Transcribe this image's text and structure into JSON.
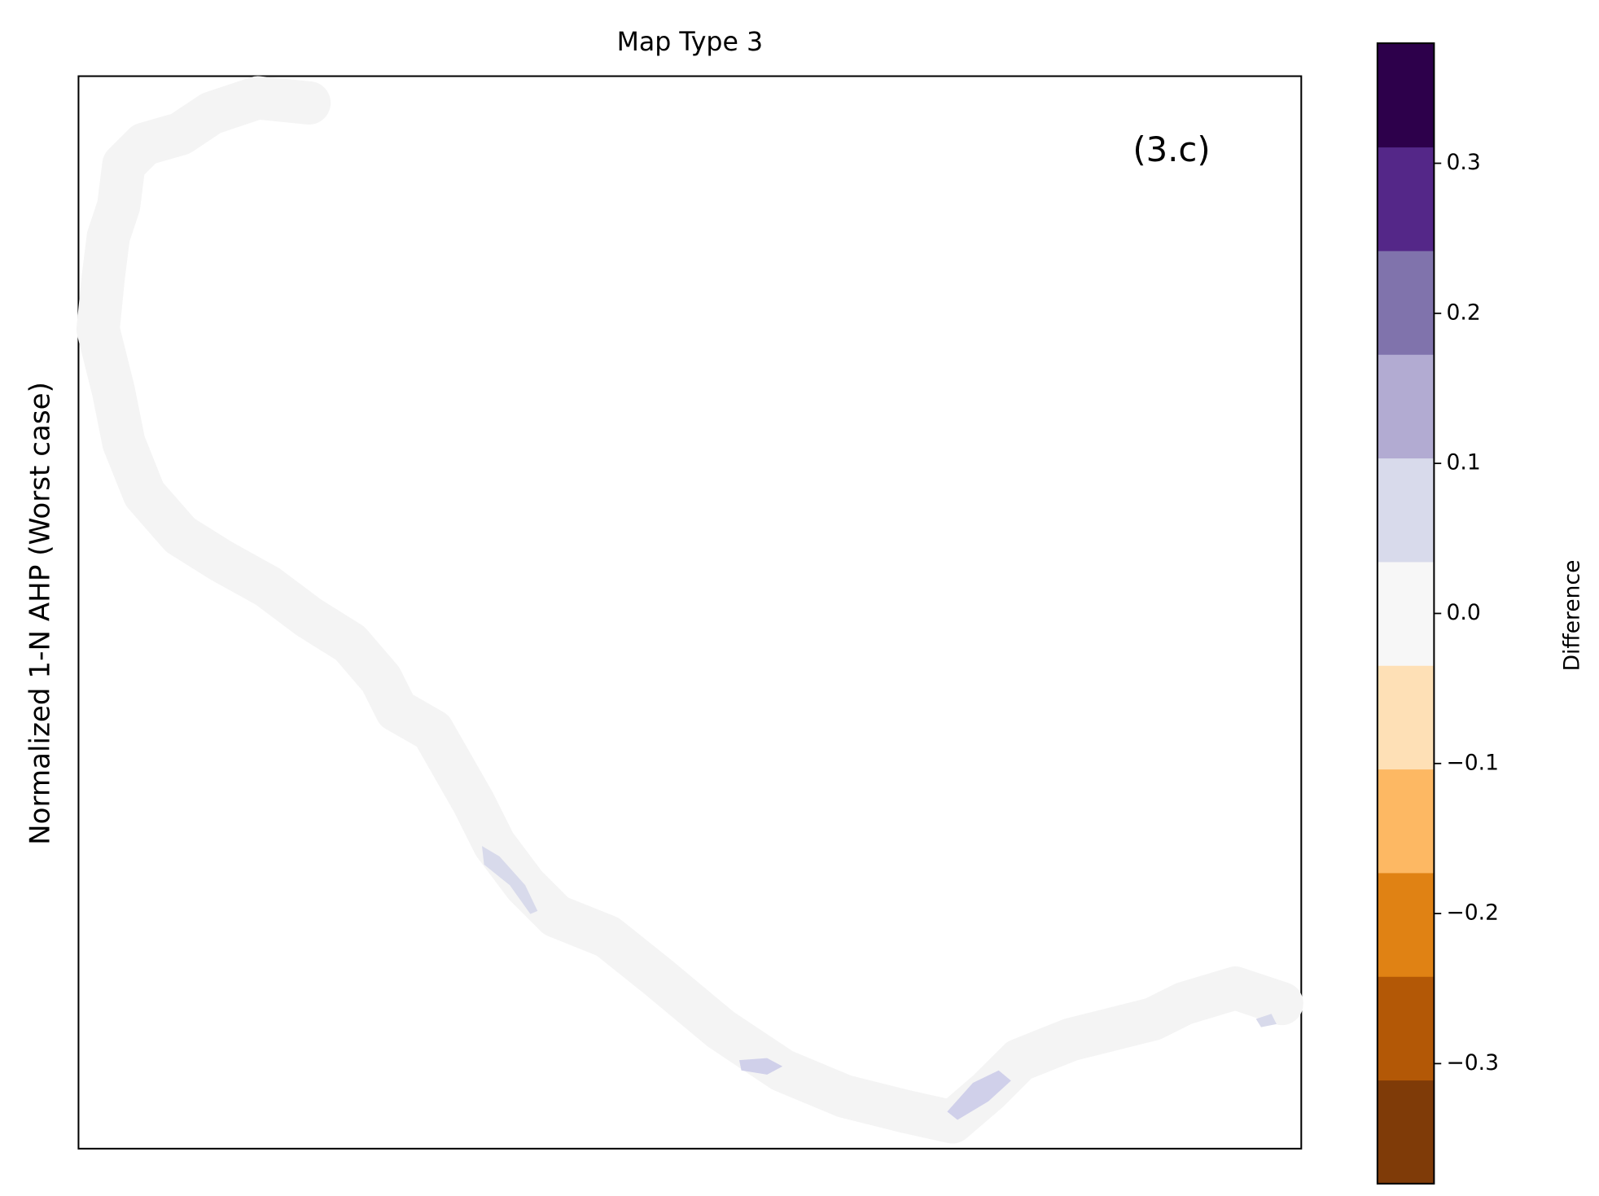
{
  "map": {
    "title": "Map Type 3",
    "ylabel": "Normalized 1-N AHP (Worst case)",
    "annotation": "(3.c)"
  },
  "colorbar": {
    "label": "Difference",
    "colors": [
      "#7f3b08",
      "#b35806",
      "#e08214",
      "#fdb863",
      "#fee0b6",
      "#f7f7f7",
      "#d8daeb",
      "#b2abd2",
      "#8073ac",
      "#542788",
      "#2d004b"
    ],
    "lim": [
      -0.38,
      0.38
    ],
    "ticks": [
      {
        "value": -0.3,
        "label": "−0.3"
      },
      {
        "value": -0.2,
        "label": "−0.2"
      },
      {
        "value": -0.1,
        "label": "−0.1"
      },
      {
        "value": 0,
        "label": "0.0"
      },
      0.1,
      0.2,
      0.3
    ]
  }
}
